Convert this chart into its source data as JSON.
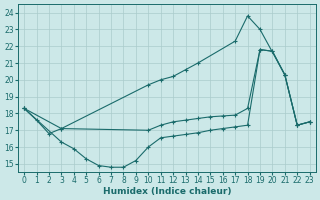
{
  "xlabel": "Humidex (Indice chaleur)",
  "xlim": [
    -0.5,
    23.5
  ],
  "ylim": [
    14.5,
    24.5
  ],
  "xticks": [
    0,
    1,
    2,
    3,
    4,
    5,
    6,
    7,
    8,
    9,
    10,
    11,
    12,
    13,
    14,
    15,
    16,
    17,
    18,
    19,
    20,
    21,
    22,
    23
  ],
  "yticks": [
    15,
    16,
    17,
    18,
    19,
    20,
    21,
    22,
    23,
    24
  ],
  "bg_color": "#cce8e8",
  "grid_color": "#aacccc",
  "line_color": "#1a6b6b",
  "line1_x": [
    0,
    1,
    2,
    3,
    10,
    11,
    12,
    13,
    14,
    17,
    18,
    19,
    21,
    22,
    23
  ],
  "line1_y": [
    18.3,
    17.6,
    16.8,
    17.1,
    19.7,
    20.0,
    20.2,
    20.6,
    21.0,
    22.3,
    23.8,
    23.0,
    20.3,
    17.3,
    17.5
  ],
  "line2_x": [
    0,
    3,
    10,
    11,
    12,
    13,
    14,
    15,
    16,
    17,
    18,
    19,
    20,
    21,
    22,
    23
  ],
  "line2_y": [
    18.3,
    17.1,
    17.0,
    17.3,
    17.5,
    17.6,
    17.7,
    17.8,
    17.85,
    17.9,
    18.3,
    21.8,
    21.7,
    20.3,
    17.3,
    17.5
  ],
  "line3_x": [
    0,
    3,
    4,
    5,
    6,
    7,
    8,
    9,
    10,
    11,
    12,
    13,
    14,
    15,
    16,
    17,
    18,
    19,
    20,
    21,
    22,
    23
  ],
  "line3_y": [
    18.3,
    16.3,
    15.9,
    15.3,
    14.9,
    14.8,
    14.8,
    15.2,
    16.0,
    16.55,
    16.65,
    16.75,
    16.85,
    17.0,
    17.1,
    17.2,
    17.3,
    21.8,
    21.7,
    20.3,
    17.3,
    17.5
  ]
}
